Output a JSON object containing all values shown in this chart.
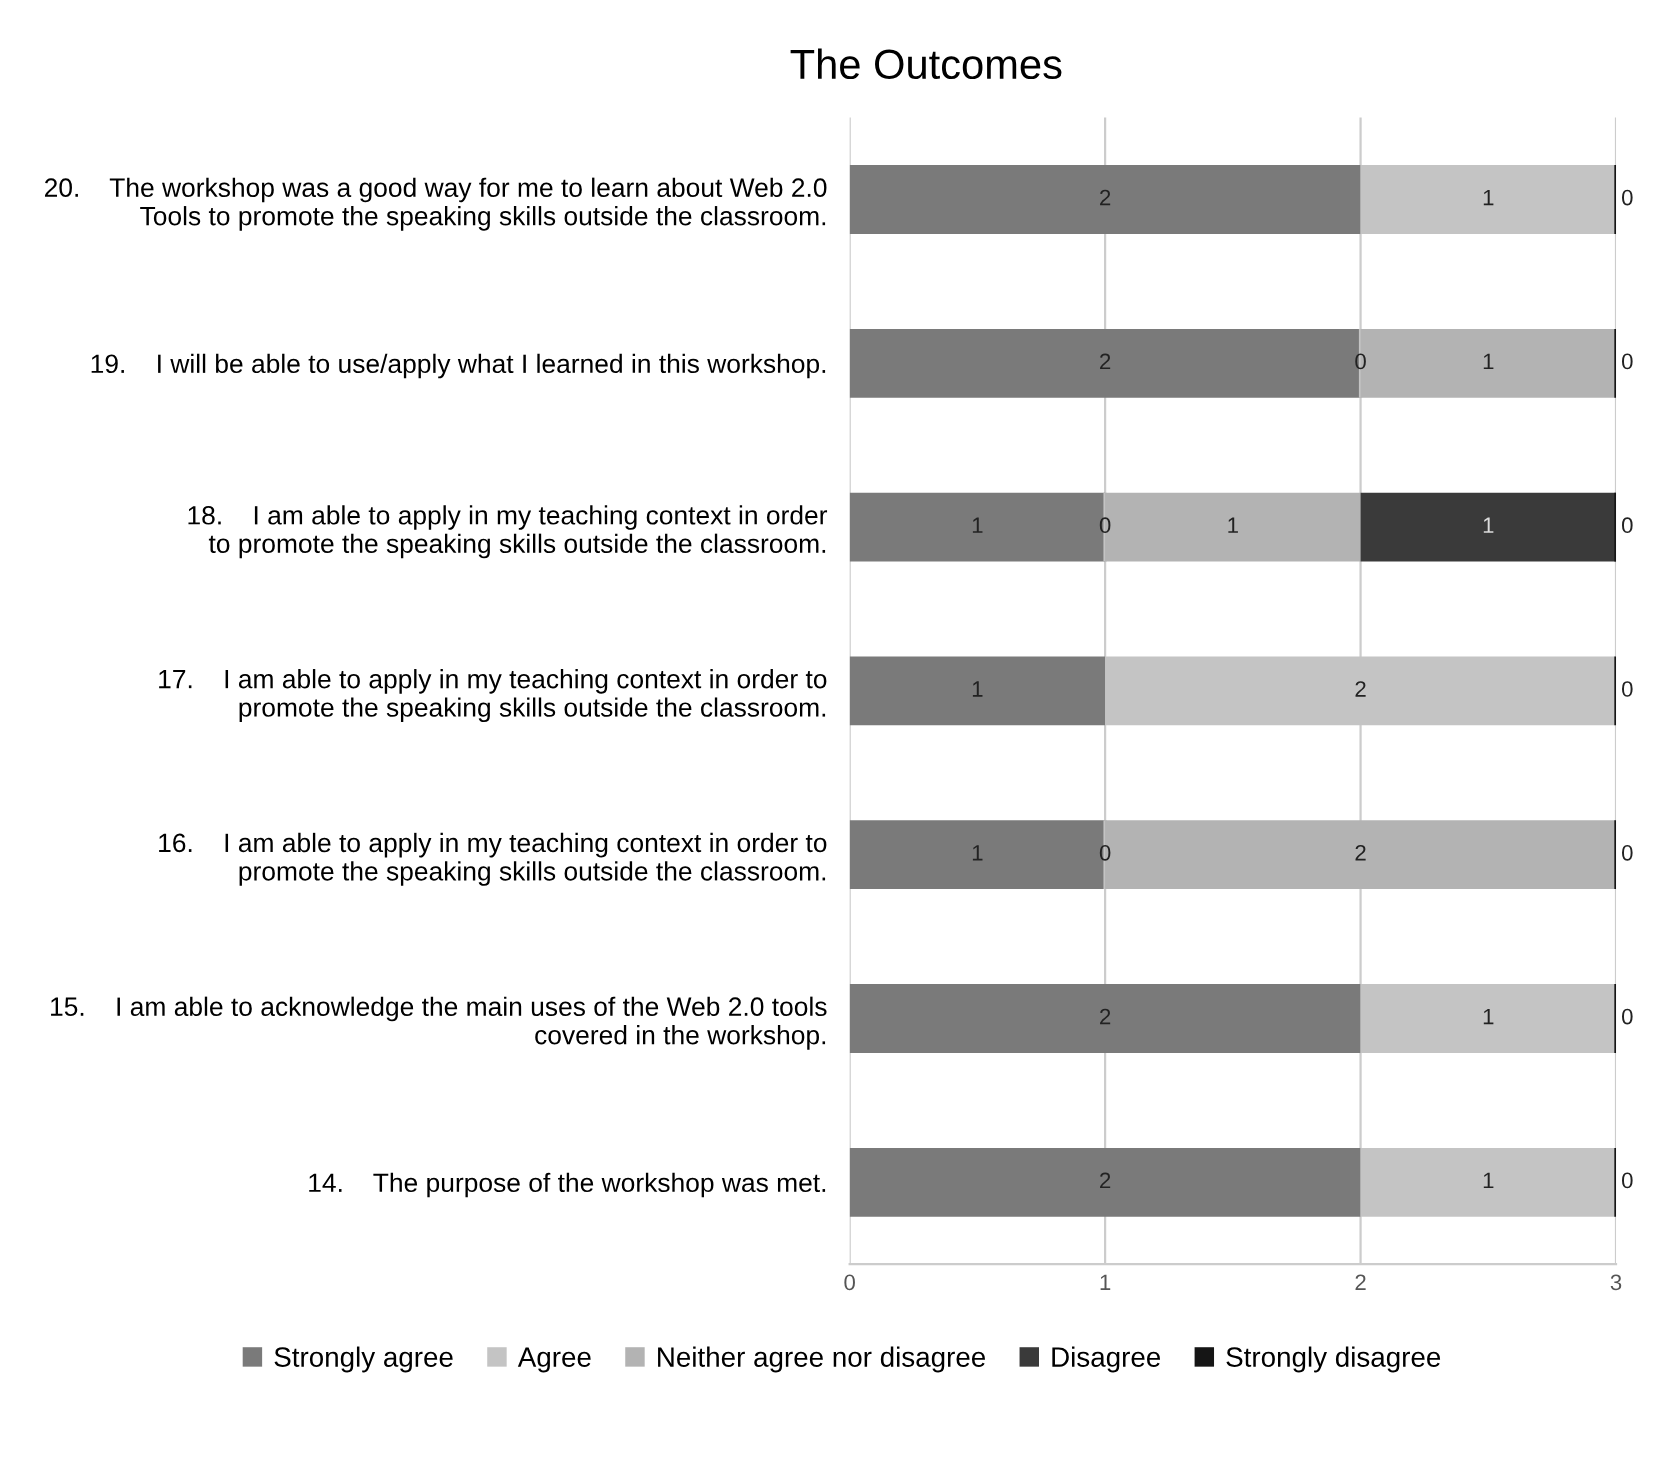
{
  "chart_data": {
    "type": "bar",
    "orientation": "horizontal",
    "stacked": true,
    "title": "The Outcomes",
    "categories": [
      "20.    The workshop was a good way for me to learn about Web 2.0\nTools to promote the speaking skills outside the classroom.",
      "19.    I will be able to use/apply what I learned in this workshop.",
      "18.    I am able to apply in my teaching context in order\nto promote the speaking skills outside the classroom.",
      "17.    I am able to apply in my teaching context in order to\npromote the speaking skills outside the classroom.",
      "16.    I am able to apply in my teaching context in order to\npromote the speaking skills outside the classroom.",
      "15.    I am able to acknowledge the main uses of the Web 2.0 tools\ncovered in the workshop.",
      "14.    The purpose of the workshop was met."
    ],
    "series": [
      {
        "name": "Strongly agree",
        "color": "#7a7a7a",
        "values": [
          2,
          2,
          1,
          1,
          1,
          2,
          2
        ],
        "value_labels": [
          "2",
          "2",
          "1",
          "1",
          "1",
          "2",
          "2"
        ]
      },
      {
        "name": "Agree",
        "color": "#c4c4c4",
        "values": [
          1,
          0,
          0,
          2,
          0,
          1,
          1
        ],
        "value_labels": [
          "1",
          "0",
          "0",
          "2",
          "0",
          "1",
          "1"
        ]
      },
      {
        "name": "Neither agree nor disagree",
        "color": "#b3b3b3",
        "values": [
          null,
          1,
          1,
          null,
          2,
          null,
          null
        ],
        "value_labels": [
          null,
          "1",
          "1",
          null,
          "2",
          null,
          null
        ]
      },
      {
        "name": "Disagree",
        "color": "#3a3a3a",
        "values": [
          null,
          null,
          1,
          null,
          null,
          null,
          null
        ],
        "value_labels": [
          null,
          null,
          "1",
          null,
          null,
          null,
          null
        ]
      },
      {
        "name": "Strongly disagree",
        "color": "#151515",
        "values": [
          0,
          0,
          0,
          0,
          0,
          0,
          0
        ],
        "value_labels": [
          "0",
          "0",
          "0",
          "0",
          "0",
          "0",
          "0"
        ]
      }
    ],
    "xlim": [
      0,
      3
    ],
    "xticks": [
      0,
      1,
      2,
      3
    ],
    "grid": "x",
    "legend": "bottom"
  }
}
